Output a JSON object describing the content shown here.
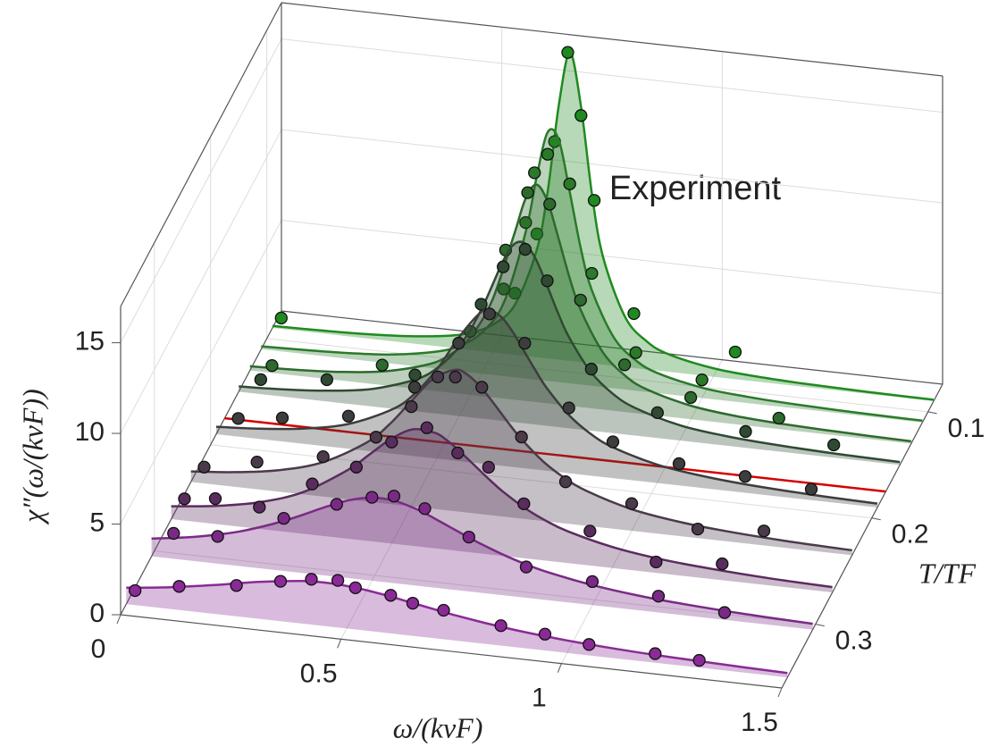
{
  "chart_data": {
    "type": "waterfall3d",
    "annotation": "Experiment",
    "x_label": "ω/(kvF)",
    "y_label": "T/TF",
    "z_label": "χ″(ω/(kvF))",
    "xlim": [
      0,
      1.5
    ],
    "xticks": [
      0,
      0.5,
      1,
      1.5
    ],
    "ylim": [
      0.36,
      0.074
    ],
    "yticks": [
      0.1,
      0.2,
      0.3
    ],
    "zlim": [
      0,
      17
    ],
    "zticks": [
      0,
      5,
      10,
      15
    ],
    "grid": true,
    "x": [
      0,
      0.1,
      0.2,
      0.3,
      0.4,
      0.45,
      0.5,
      0.55,
      0.6,
      0.625,
      0.65,
      0.675,
      0.7,
      0.725,
      0.75,
      0.8,
      0.85,
      0.9,
      1,
      1.1,
      1.2,
      1.35,
      1.5
    ],
    "series": [
      {
        "T": 0.35,
        "color": "#8a2a96",
        "values": [
          0.9,
          1.2,
          1.59,
          2.03,
          2.35,
          2.4,
          2.35,
          2.22,
          2.03,
          1.92,
          1.81,
          1.7,
          1.59,
          1.48,
          1.38,
          1.2,
          1.04,
          0.9,
          0.69,
          0.54,
          0.43,
          0.32,
          0.24
        ],
        "points_x": [
          0.02,
          0.12,
          0.25,
          0.35,
          0.42,
          0.48,
          0.52,
          0.6,
          0.65,
          0.72,
          0.85,
          0.95,
          1.05,
          1.2,
          1.3
        ],
        "points_values": [
          0.8,
          1.3,
          1.7,
          2.2,
          2.5,
          2.6,
          2.3,
          2.1,
          1.8,
          1.6,
          1.1,
          0.9,
          0.6,
          0.5,
          0.4
        ]
      },
      {
        "T": 0.305,
        "color": "#7a2a86",
        "values": [
          0.98,
          1.35,
          1.91,
          2.76,
          3.84,
          4.31,
          4.58,
          4.55,
          4.23,
          4.0,
          3.73,
          3.46,
          3.19,
          2.92,
          2.67,
          2.22,
          1.84,
          1.54,
          1.11,
          0.82,
          0.63,
          0.44,
          0.32
        ],
        "points_x": [
          0.05,
          0.15,
          0.3,
          0.42,
          0.5,
          0.55,
          0.62,
          0.72,
          0.85,
          1.0,
          1.15,
          1.3
        ],
        "points_values": [
          1.4,
          1.5,
          2.9,
          4.0,
          4.6,
          4.8,
          4.3,
          3.0,
          1.7,
          1.3,
          0.9,
          0.4
        ]
      },
      {
        "T": 0.27,
        "color": "#5a2c5e",
        "values": [
          0.71,
          1.0,
          1.47,
          2.3,
          3.78,
          4.78,
          5.79,
          6.44,
          6.36,
          6.04,
          5.6,
          5.09,
          4.57,
          4.06,
          3.59,
          2.8,
          2.2,
          1.75,
          1.16,
          0.81,
          0.6,
          0.4,
          0.29
        ],
        "points_x": [
          0.03,
          0.1,
          0.2,
          0.32,
          0.42,
          0.5,
          0.58,
          0.65,
          0.72,
          0.8,
          0.95,
          1.1,
          1.25
        ],
        "points_values": [
          1.2,
          1.4,
          1.2,
          2.8,
          4.0,
          5.6,
          6.6,
          5.4,
          4.8,
          3.0,
          1.9,
          0.6,
          0.9
        ]
      },
      {
        "T": 0.235,
        "color": "#4a3a4a",
        "values": [
          0.58,
          0.81,
          1.19,
          1.9,
          3.27,
          4.38,
          5.8,
          7.18,
          7.8,
          7.64,
          7.18,
          6.53,
          5.8,
          5.06,
          4.38,
          3.27,
          2.47,
          1.9,
          1.19,
          0.81,
          0.58,
          0.38,
          0.27
        ],
        "points_x": [
          0.03,
          0.15,
          0.3,
          0.42,
          0.5,
          0.56,
          0.6,
          0.66,
          0.75,
          0.85,
          1.0,
          1.15,
          1.3
        ],
        "points_values": [
          0.9,
          1.5,
          2.2,
          3.6,
          5.5,
          7.3,
          7.4,
          7.0,
          4.5,
          2.3,
          1.5,
          0.5,
          0.8
        ]
      },
      {
        "T": 0.19,
        "color": "#3d3d3d",
        "values": [
          0.41,
          0.57,
          0.85,
          1.37,
          2.45,
          3.44,
          4.9,
          6.8,
          8.33,
          8.49,
          8.13,
          7.37,
          6.41,
          5.44,
          4.56,
          3.21,
          2.3,
          1.7,
          1.02,
          0.67,
          0.47,
          0.3,
          0.21
        ],
        "points_x": [
          0.05,
          0.15,
          0.3,
          0.45,
          0.55,
          0.62,
          0.7,
          0.8,
          0.9,
          1.05,
          1.2,
          1.35
        ],
        "points_values": [
          1.0,
          1.3,
          1.8,
          3.8,
          6.5,
          8.3,
          6.9,
          3.6,
          2.0,
          1.2,
          0.9,
          0.6
        ]
      },
      {
        "T": 0.175,
        "color": "#d40000",
        "x": [
          0,
          1.5
        ],
        "values": [
          0,
          0
        ]
      },
      {
        "T": 0.15,
        "color": "#2f4a32",
        "values": [
          0.29,
          0.4,
          0.59,
          0.95,
          1.74,
          2.51,
          3.82,
          5.99,
          8.83,
          9.82,
          9.92,
          9.08,
          7.71,
          6.26,
          5.0,
          3.21,
          2.15,
          1.52,
          0.85,
          0.54,
          0.37,
          0.23,
          0.16
        ],
        "points_x": [
          0.05,
          0.2,
          0.4,
          0.55,
          0.6,
          0.65,
          0.7,
          0.8,
          0.95,
          1.15,
          1.35
        ],
        "points_values": [
          0.8,
          1.2,
          2.0,
          6.3,
          8.5,
          9.6,
          8.0,
          3.4,
          1.4,
          0.9,
          0.7
        ]
      },
      {
        "T": 0.13,
        "color": "#2d6a2d",
        "values": [
          0.23,
          0.31,
          0.46,
          0.75,
          1.38,
          2.02,
          3.18,
          5.37,
          9.17,
          11.14,
          12,
          11.14,
          9.17,
          7.08,
          5.37,
          3.18,
          2.02,
          1.38,
          0.75,
          0.46,
          0.31,
          0.2,
          0.13
        ],
        "points_x": [
          0.05,
          0.3,
          0.5,
          0.58,
          0.63,
          0.68,
          0.75,
          0.85,
          1.0,
          1.2
        ],
        "points_values": [
          0.4,
          1.1,
          3.5,
          8.2,
          11.5,
          11.0,
          5.9,
          2.6,
          1.2,
          0.6
        ]
      },
      {
        "T": 0.11,
        "color": "#2a7a2a",
        "values": [
          0.16,
          0.22,
          0.32,
          0.51,
          0.95,
          1.4,
          2.25,
          4.03,
          8.07,
          11.2,
          13.72,
          13.38,
          10.55,
          7.52,
          5.28,
          2.8,
          1.67,
          1.1,
          0.57,
          0.35,
          0.23,
          0.14,
          0.1
        ],
        "points_x": [
          0.55,
          0.6,
          0.62,
          0.65,
          0.7,
          0.75,
          0.85,
          1.0
        ],
        "points_values": [
          4.8,
          8.6,
          11.4,
          12.5,
          11.0,
          6.2,
          2.1,
          1.0
        ]
      },
      {
        "T": 0.09,
        "color": "#1f8a1f",
        "values": [
          0.11,
          0.15,
          0.22,
          0.36,
          0.65,
          0.96,
          1.53,
          2.76,
          5.94,
          9.31,
          14.09,
          17,
          14.09,
          9.31,
          5.94,
          2.76,
          1.53,
          0.96,
          0.47,
          0.28,
          0.18,
          0.11,
          0.08
        ],
        "points_x": [
          0.02,
          0.55,
          0.6,
          0.64,
          0.67,
          0.7,
          0.73,
          0.82,
          1.05
        ],
        "points_values": [
          0.6,
          3.4,
          6.8,
          12.0,
          17.0,
          13.6,
          9.0,
          3.0,
          1.5
        ]
      }
    ]
  }
}
